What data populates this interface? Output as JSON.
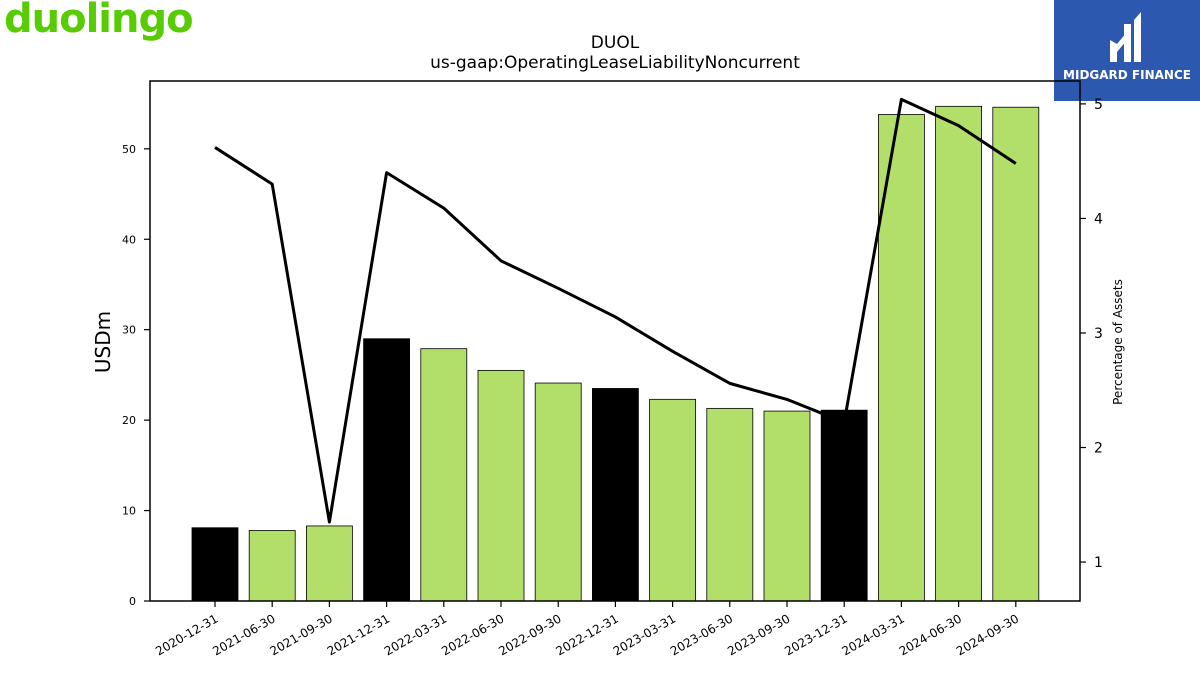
{
  "brand": {
    "name": "duolingo",
    "color": "#58cc02"
  },
  "badge": {
    "text": "MIDGARD FINANCE",
    "icon": "midgard-logo-icon",
    "color": "#2c58b0"
  },
  "chart_data": {
    "type": "bar",
    "title": "DUOL",
    "subtitle": "us-gaap:OperatingLeaseLiabilityNoncurrent",
    "ylabel": "USDm",
    "y2label": "Percentage of Assets",
    "ylim": [
      0,
      57.5
    ],
    "y2lim": [
      0.66,
      5.2
    ],
    "yticks": [
      0,
      10,
      20,
      30,
      40,
      50
    ],
    "y2ticks": [
      1,
      2,
      3,
      4,
      5
    ],
    "categories": [
      "2020-12-31",
      "2021-06-30",
      "2021-09-30",
      "2021-12-31",
      "2022-03-31",
      "2022-06-30",
      "2022-09-30",
      "2022-12-31",
      "2023-03-31",
      "2023-06-30",
      "2023-09-30",
      "2023-12-31",
      "2024-03-31",
      "2024-06-30",
      "2024-09-30"
    ],
    "series": [
      {
        "type": "bar",
        "axis": "left",
        "values": [
          8.1,
          7.8,
          8.3,
          29.0,
          27.9,
          25.5,
          24.1,
          23.5,
          22.3,
          21.3,
          21.0,
          21.1,
          53.8,
          54.7,
          54.6
        ],
        "colors": [
          "#000000",
          "#b2df6a",
          "#b2df6a",
          "#000000",
          "#b2df6a",
          "#b2df6a",
          "#b2df6a",
          "#000000",
          "#b2df6a",
          "#b2df6a",
          "#b2df6a",
          "#000000",
          "#b2df6a",
          "#b2df6a",
          "#b2df6a"
        ]
      },
      {
        "type": "line",
        "axis": "right",
        "color": "#000000",
        "values": [
          4.62,
          4.3,
          1.35,
          4.4,
          4.09,
          3.63,
          3.39,
          3.14,
          2.84,
          2.56,
          2.42,
          2.22,
          5.04,
          4.81,
          4.48
        ]
      }
    ],
    "grid": false,
    "legend": "none"
  }
}
